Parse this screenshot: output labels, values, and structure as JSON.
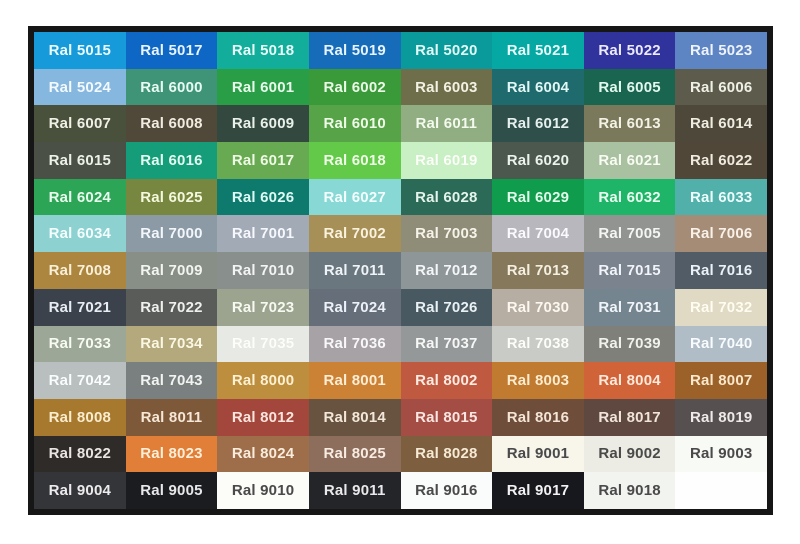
{
  "page": {
    "background": "#ffffff",
    "frame_border_color": "#161616"
  },
  "chart_data": {
    "type": "table",
    "title": "",
    "columns": 8,
    "rows": 13,
    "description_colors": {
      "light_text": "#f4f4f4",
      "dark_text": "#454545"
    },
    "cells": [
      {
        "label": "Ral 5015",
        "bg": "#179ad9",
        "fg": "#eafcff"
      },
      {
        "label": "Ral 5017",
        "bg": "#0f67c5",
        "fg": "#e8f4ff"
      },
      {
        "label": "Ral 5018",
        "bg": "#12ad9b",
        "fg": "#e8fffb"
      },
      {
        "label": "Ral 5019",
        "bg": "#176cba",
        "fg": "#e8f4ff"
      },
      {
        "label": "Ral 5020",
        "bg": "#0b9a9b",
        "fg": "#e2fbf7"
      },
      {
        "label": "Ral 5021",
        "bg": "#06a8a4",
        "fg": "#e8fffd"
      },
      {
        "label": "Ral 5022",
        "bg": "#31339c",
        "fg": "#eceafd"
      },
      {
        "label": "Ral 5023",
        "bg": "#5d84c3",
        "fg": "#eef3fd"
      },
      {
        "label": "Ral 5024",
        "bg": "#86b7de",
        "fg": "#f2f9ff"
      },
      {
        "label": "Ral 6000",
        "bg": "#3f9478",
        "fg": "#e8fbf2"
      },
      {
        "label": "Ral 6001",
        "bg": "#2a9e46",
        "fg": "#e8fdec"
      },
      {
        "label": "Ral 6002",
        "bg": "#3a9a39",
        "fg": "#ebfbe8"
      },
      {
        "label": "Ral 6003",
        "bg": "#6f6e4b",
        "fg": "#f3f2e2"
      },
      {
        "label": "Ral 6004",
        "bg": "#1e6a6c",
        "fg": "#e2f7f5"
      },
      {
        "label": "Ral 6005",
        "bg": "#19654f",
        "fg": "#e2f7ee"
      },
      {
        "label": "Ral 6006",
        "bg": "#5d5c4c",
        "fg": "#f1f0e6"
      },
      {
        "label": "Ral 6007",
        "bg": "#49503b",
        "fg": "#eff1e6"
      },
      {
        "label": "Ral 6008",
        "bg": "#504839",
        "fg": "#f1ece0"
      },
      {
        "label": "Ral 6009",
        "bg": "#334940",
        "fg": "#e8f1ea"
      },
      {
        "label": "Ral 6010",
        "bg": "#57a347",
        "fg": "#eefce8"
      },
      {
        "label": "Ral 6011",
        "bg": "#90ae81",
        "fg": "#f4faee"
      },
      {
        "label": "Ral 6012",
        "bg": "#2f4f4b",
        "fg": "#e6f1ee"
      },
      {
        "label": "Ral 6013",
        "bg": "#7b795c",
        "fg": "#f4f2e4"
      },
      {
        "label": "Ral 6014",
        "bg": "#4e483a",
        "fg": "#efece0"
      },
      {
        "label": "Ral 6015",
        "bg": "#4a5046",
        "fg": "#eef1ea"
      },
      {
        "label": "Ral 6016",
        "bg": "#149d78",
        "fg": "#e4fcf2"
      },
      {
        "label": "Ral 6017",
        "bg": "#68aa51",
        "fg": "#effae6"
      },
      {
        "label": "Ral 6018",
        "bg": "#63c948",
        "fg": "#f0ffe8"
      },
      {
        "label": "Ral 6019",
        "bg": "#c9efc4",
        "fg": "#fbfff8"
      },
      {
        "label": "Ral 6020",
        "bg": "#4c584e",
        "fg": "#ecf2ec"
      },
      {
        "label": "Ral 6021",
        "bg": "#a9c1a1",
        "fg": "#f8fcf2"
      },
      {
        "label": "Ral 6022",
        "bg": "#504738",
        "fg": "#f0ebdf"
      },
      {
        "label": "Ral 6024",
        "bg": "#2ca557",
        "fg": "#e8fded"
      },
      {
        "label": "Ral 6025",
        "bg": "#77873f",
        "fg": "#f4f8dd"
      },
      {
        "label": "Ral 6026",
        "bg": "#0d7a6d",
        "fg": "#defaf4"
      },
      {
        "label": "Ral 6027",
        "bg": "#88d9d5",
        "fg": "#f4ffff"
      },
      {
        "label": "Ral 6028",
        "bg": "#2a6a56",
        "fg": "#e4f4ec"
      },
      {
        "label": "Ral 6029",
        "bg": "#0f9c4d",
        "fg": "#e2fcea"
      },
      {
        "label": "Ral 6032",
        "bg": "#1fb568",
        "fg": "#e8fff0"
      },
      {
        "label": "Ral 6033",
        "bg": "#52b0aa",
        "fg": "#ecfffd"
      },
      {
        "label": "Ral 6034",
        "bg": "#8ed1d1",
        "fg": "#f4ffff"
      },
      {
        "label": "Ral 7000",
        "bg": "#8b9aa5",
        "fg": "#f3f7fb"
      },
      {
        "label": "Ral 7001",
        "bg": "#a2aab6",
        "fg": "#f6f8fd"
      },
      {
        "label": "Ral 7002",
        "bg": "#a79057",
        "fg": "#f9f2dd"
      },
      {
        "label": "Ral 7003",
        "bg": "#8f8c78",
        "fg": "#f6f4e8"
      },
      {
        "label": "Ral 7004",
        "bg": "#b9b7be",
        "fg": "#fbfafd"
      },
      {
        "label": "Ral 7005",
        "bg": "#919490",
        "fg": "#f5f6f3"
      },
      {
        "label": "Ral 7006",
        "bg": "#a48c76",
        "fg": "#f9f1e8"
      },
      {
        "label": "Ral 7008",
        "bg": "#ac863f",
        "fg": "#faf0d8"
      },
      {
        "label": "Ral 7009",
        "bg": "#888f86",
        "fg": "#f3f5f1"
      },
      {
        "label": "Ral 7010",
        "bg": "#898f8d",
        "fg": "#f3f5f4"
      },
      {
        "label": "Ral 7011",
        "bg": "#6b777f",
        "fg": "#eff4f8"
      },
      {
        "label": "Ral 7012",
        "bg": "#8e9698",
        "fg": "#f4f7f8"
      },
      {
        "label": "Ral 7013",
        "bg": "#86795b",
        "fg": "#f5efe0"
      },
      {
        "label": "Ral 7015",
        "bg": "#7b838e",
        "fg": "#f1f4f9"
      },
      {
        "label": "Ral 7016",
        "bg": "#515c67",
        "fg": "#ebf1f7"
      },
      {
        "label": "Ral 7021",
        "bg": "#3b424c",
        "fg": "#e9edf3"
      },
      {
        "label": "Ral 7022",
        "bg": "#595c58",
        "fg": "#eff0ed"
      },
      {
        "label": "Ral 7023",
        "bg": "#9ca490",
        "fg": "#f7faf0"
      },
      {
        "label": "Ral 7024",
        "bg": "#656e79",
        "fg": "#eef2f8"
      },
      {
        "label": "Ral 7026",
        "bg": "#485961",
        "fg": "#e9f1f5"
      },
      {
        "label": "Ral 7030",
        "bg": "#b6aea2",
        "fg": "#fcf8f1"
      },
      {
        "label": "Ral 7031",
        "bg": "#75858f",
        "fg": "#f0f5f9"
      },
      {
        "label": "Ral 7032",
        "bg": "#e0dac4",
        "fg": "#fffdf2"
      },
      {
        "label": "Ral 7033",
        "bg": "#9da797",
        "fg": "#f7fbf2"
      },
      {
        "label": "Ral 7034",
        "bg": "#b3a97c",
        "fg": "#fbf7e2"
      },
      {
        "label": "Ral 7035",
        "bg": "#e7e9e4",
        "fg": "#fdfefb"
      },
      {
        "label": "Ral 7036",
        "bg": "#a6a2a6",
        "fg": "#f9f7f9"
      },
      {
        "label": "Ral 7037",
        "bg": "#959899",
        "fg": "#f6f7f7"
      },
      {
        "label": "Ral 7038",
        "bg": "#c9cbc6",
        "fg": "#fdfefa"
      },
      {
        "label": "Ral 7039",
        "bg": "#80807b",
        "fg": "#f2f2ec"
      },
      {
        "label": "Ral 7040",
        "bg": "#b1bdc6",
        "fg": "#f8fcff"
      },
      {
        "label": "Ral 7042",
        "bg": "#b9bebf",
        "fg": "#fafdfd"
      },
      {
        "label": "Ral 7043",
        "bg": "#7a807f",
        "fg": "#f1f4f2"
      },
      {
        "label": "Ral 8000",
        "bg": "#bd8e3e",
        "fg": "#fdf1d2"
      },
      {
        "label": "Ral 8001",
        "bg": "#cc8235",
        "fg": "#ffeed4"
      },
      {
        "label": "Ral 8002",
        "bg": "#bf5a41",
        "fg": "#ffebe2"
      },
      {
        "label": "Ral 8003",
        "bg": "#c07b31",
        "fg": "#feeccf"
      },
      {
        "label": "Ral 8004",
        "bg": "#d06338",
        "fg": "#ffe9da"
      },
      {
        "label": "Ral 8007",
        "bg": "#9c6128",
        "fg": "#fae8cc"
      },
      {
        "label": "Ral 8008",
        "bg": "#a7792f",
        "fg": "#fbeccb"
      },
      {
        "label": "Ral 8011",
        "bg": "#7d5839",
        "fg": "#f6e7d6"
      },
      {
        "label": "Ral 8012",
        "bg": "#a3463b",
        "fg": "#fde5de"
      },
      {
        "label": "Ral 8014",
        "bg": "#67533f",
        "fg": "#f2e7d9"
      },
      {
        "label": "Ral 8015",
        "bg": "#a44d45",
        "fg": "#fde5e0"
      },
      {
        "label": "Ral 8016",
        "bg": "#6e4d3b",
        "fg": "#f4e5d6"
      },
      {
        "label": "Ral 8017",
        "bg": "#5f483f",
        "fg": "#f1e4da"
      },
      {
        "label": "Ral 8019",
        "bg": "#575050",
        "fg": "#efeaea"
      },
      {
        "label": "Ral 8022",
        "bg": "#2e2b29",
        "fg": "#e9e5e2"
      },
      {
        "label": "Ral 8023",
        "bg": "#e17f38",
        "fg": "#ffefd8"
      },
      {
        "label": "Ral 8024",
        "bg": "#9d6e49",
        "fg": "#faecdc"
      },
      {
        "label": "Ral 8025",
        "bg": "#8d6d5b",
        "fg": "#f8ece2"
      },
      {
        "label": "Ral 8028",
        "bg": "#7d5f3f",
        "fg": "#f6ead4"
      },
      {
        "label": "Ral 9001",
        "bg": "#f8f5eb",
        "fg": "#4a4a4a"
      },
      {
        "label": "Ral 9002",
        "bg": "#edece4",
        "fg": "#4a4a4a"
      },
      {
        "label": "Ral 9003",
        "bg": "#f8faf5",
        "fg": "#4a4a4a"
      },
      {
        "label": "Ral 9004",
        "bg": "#343539",
        "fg": "#ececee"
      },
      {
        "label": "Ral 9005",
        "bg": "#1b1c20",
        "fg": "#e8e8ea"
      },
      {
        "label": "Ral 9010",
        "bg": "#fcfcf8",
        "fg": "#4a4a4a"
      },
      {
        "label": "Ral 9011",
        "bg": "#242529",
        "fg": "#eaeaec"
      },
      {
        "label": "Ral 9016",
        "bg": "#fafbfb",
        "fg": "#4a4a4a"
      },
      {
        "label": "Ral 9017",
        "bg": "#17181d",
        "fg": "#f2f2f4"
      },
      {
        "label": "Ral 9018",
        "bg": "#f2f4f0",
        "fg": "#4a4a4a"
      },
      {
        "label": "",
        "bg": "#fefefe",
        "fg": "#4a4a4a"
      }
    ]
  }
}
